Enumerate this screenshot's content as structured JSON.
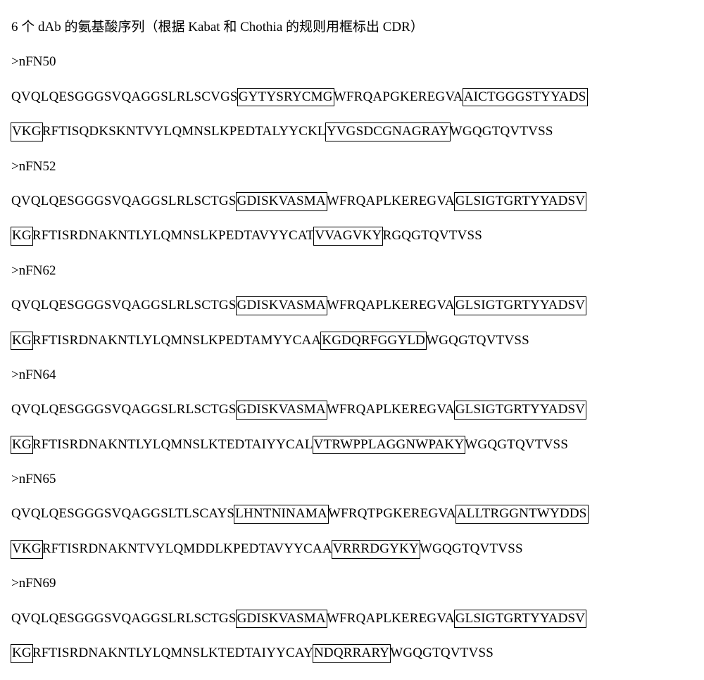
{
  "title": "6 个 dAb 的氨基酸序列（根据 Kabat 和 Chothia 的规则用框标出 CDR）",
  "entries": [
    {
      "label": ">nFN50",
      "line1": [
        {
          "t": "QVQLQESGGGSVQAGGSLRLSCVGS",
          "b": false
        },
        {
          "t": "GYTYSRYCMG",
          "b": true
        },
        {
          "t": "WFRQAPGKEREGVA",
          "b": false
        },
        {
          "t": "AICTGGGSTYYADS",
          "b": true
        }
      ],
      "line2": [
        {
          "t": "VKG",
          "b": true
        },
        {
          "t": "RFTISQDKSKNTVYLQMNSLKPEDTALYYCKL",
          "b": false
        },
        {
          "t": "YVGSDCGNAGRAY",
          "b": true
        },
        {
          "t": "WGQGTQVTVSS",
          "b": false
        }
      ]
    },
    {
      "label": ">nFN52",
      "line1": [
        {
          "t": "QVQLQESGGGSVQAGGSLRLSCTGS",
          "b": false
        },
        {
          "t": "GDISKVASMA",
          "b": true
        },
        {
          "t": "WFRQAPLKEREGVA",
          "b": false
        },
        {
          "t": "GLSIGTGRTYYADSV",
          "b": true
        }
      ],
      "line2": [
        {
          "t": "KG",
          "b": true
        },
        {
          "t": "RFTISRDNAKNTLYLQMNSLKPEDTAVYYCAT",
          "b": false
        },
        {
          "t": "VVAGVKY",
          "b": true
        },
        {
          "t": "RGQGTQVTVSS",
          "b": false
        }
      ]
    },
    {
      "label": ">nFN62",
      "line1": [
        {
          "t": "QVQLQESGGGSVQAGGSLRLSCTGS",
          "b": false
        },
        {
          "t": "GDISKVASMA",
          "b": true
        },
        {
          "t": "WFRQAPLKEREGVA",
          "b": false
        },
        {
          "t": "GLSIGTGRTYYADSV",
          "b": true
        }
      ],
      "line2": [
        {
          "t": "KG",
          "b": true
        },
        {
          "t": "RFTISRDNAKNTLYLQMNSLKPEDTAMYYCAA",
          "b": false
        },
        {
          "t": "KGDQRFGGYLD",
          "b": true
        },
        {
          "t": "WGQGTQVTVSS",
          "b": false
        }
      ]
    },
    {
      "label": ">nFN64",
      "line1": [
        {
          "t": "QVQLQESGGGSVQAGGSLRLSCTGS",
          "b": false
        },
        {
          "t": "GDISKVASMA",
          "b": true
        },
        {
          "t": "WFRQAPLKEREGVA",
          "b": false
        },
        {
          "t": "GLSIGTGRTYYADSV",
          "b": true
        }
      ],
      "line2": [
        {
          "t": "KG",
          "b": true
        },
        {
          "t": "RFTISRDNAKNTLYLQMNSLKTEDTAIYYCAL",
          "b": false
        },
        {
          "t": "VTRWPPLAGGNWPAKY",
          "b": true
        },
        {
          "t": "WGQGTQVTVSS",
          "b": false
        }
      ]
    },
    {
      "label": ">nFN65",
      "line1": [
        {
          "t": "QVQLQESGGGSVQAGGSLTLSCAYS",
          "b": false
        },
        {
          "t": "LHNTNINAMA",
          "b": true
        },
        {
          "t": "WFRQTPGKEREGVA",
          "b": false
        },
        {
          "t": "ALLTRGGNTWYDDS",
          "b": true
        }
      ],
      "line2": [
        {
          "t": "VKG",
          "b": true
        },
        {
          "t": "RFTISRDNAKNTVYLQMDDLKPEDTAVYYCAA",
          "b": false
        },
        {
          "t": "VRRRDGYKY",
          "b": true
        },
        {
          "t": "WGQGTQVTVSS",
          "b": false
        }
      ]
    },
    {
      "label": ">nFN69",
      "line1": [
        {
          "t": "QVQLQESGGGSVQAGGSLRLSCTGS",
          "b": false
        },
        {
          "t": "GDISKVASMA",
          "b": true
        },
        {
          "t": "WFRQAPLKEREGVA",
          "b": false
        },
        {
          "t": "GLSIGTGRTYYADSV",
          "b": true
        }
      ],
      "line2": [
        {
          "t": "KG",
          "b": true
        },
        {
          "t": "RFTISRDNAKNTLYLQMNSLKTEDTAIYYCAY",
          "b": false
        },
        {
          "t": "NDQRRARY",
          "b": true
        },
        {
          "t": "WGQGTQVTVSS",
          "b": false
        }
      ]
    }
  ]
}
